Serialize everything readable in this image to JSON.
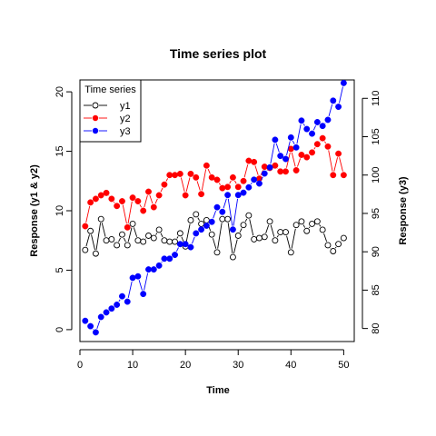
{
  "chart_data": {
    "type": "scatter",
    "title": "Time series plot",
    "xlabel": "Time",
    "ylabel_left": "Response (y1 & y2)",
    "ylabel_right": "Response (y3)",
    "xlim": [
      0,
      52
    ],
    "ylim_left": [
      -1,
      21
    ],
    "ylim_right": [
      78.3,
      112.4
    ],
    "x_ticks": [
      0,
      10,
      20,
      30,
      40,
      50
    ],
    "y_left_ticks": [
      0,
      5,
      10,
      15,
      20
    ],
    "y_right_ticks": [
      80,
      85,
      90,
      95,
      100,
      105,
      110
    ],
    "grid": false,
    "legend": {
      "title": "Time series",
      "position": "top-left"
    },
    "x": [
      1,
      2,
      3,
      4,
      5,
      6,
      7,
      8,
      9,
      10,
      11,
      12,
      13,
      14,
      15,
      16,
      17,
      18,
      19,
      20,
      21,
      22,
      23,
      24,
      25,
      26,
      27,
      28,
      29,
      30,
      31,
      32,
      33,
      34,
      35,
      36,
      37,
      38,
      39,
      40,
      41,
      42,
      43,
      44,
      45,
      46,
      47,
      48,
      49,
      50
    ],
    "series": [
      {
        "name": "y1",
        "axis": "left",
        "marker": "open-circle",
        "line": "solid",
        "color": "#000000",
        "values": [
          6.7,
          8.3,
          6.4,
          9.3,
          7.5,
          7.6,
          7.1,
          8.0,
          7.1,
          8.9,
          7.5,
          7.4,
          7.9,
          7.7,
          8.4,
          7.5,
          7.4,
          7.4,
          8.1,
          7.0,
          9.2,
          9.7,
          8.9,
          9.2,
          8.0,
          6.5,
          9.3,
          9.3,
          6.1,
          7.9,
          8.8,
          9.6,
          7.6,
          7.7,
          7.8,
          9.1,
          7.5,
          8.2,
          8.2,
          6.5,
          8.8,
          9.1,
          8.3,
          8.9,
          9.1,
          8.4,
          7.1,
          6.6,
          7.2,
          7.7
        ]
      },
      {
        "name": "y2",
        "axis": "left",
        "marker": "filled-circle",
        "line": "solid",
        "color": "#ff0000",
        "values": [
          8.7,
          10.7,
          11.0,
          11.3,
          11.5,
          11.0,
          10.4,
          10.8,
          8.6,
          11.1,
          10.8,
          10.0,
          11.6,
          10.3,
          11.3,
          12.2,
          13.0,
          13.0,
          13.1,
          11.3,
          13.1,
          12.8,
          11.4,
          13.8,
          12.8,
          12.6,
          11.9,
          12.0,
          12.8,
          12.0,
          12.5,
          14.2,
          14.1,
          12.7,
          13.7,
          13.6,
          13.8,
          13.3,
          13.3,
          15.2,
          13.4,
          14.7,
          14.5,
          14.9,
          15.6,
          16.1,
          15.4,
          13.0,
          14.8,
          13.0
        ]
      },
      {
        "name": "y3",
        "axis": "right",
        "marker": "filled-circle",
        "line": "solid",
        "color": "#0000ff",
        "values": [
          81.0,
          80.3,
          79.5,
          81.5,
          82.1,
          82.6,
          83.1,
          84.2,
          83.5,
          86.6,
          86.8,
          84.5,
          87.7,
          87.7,
          88.2,
          89.1,
          89.1,
          89.6,
          91.0,
          91.0,
          90.6,
          92.4,
          92.9,
          93.4,
          93.9,
          95.8,
          95.2,
          97.4,
          92.9,
          97.4,
          97.7,
          98.4,
          99.4,
          98.9,
          100.2,
          101.0,
          104.6,
          102.5,
          102.1,
          104.9,
          103.6,
          107.1,
          106.0,
          105.4,
          106.9,
          106.4,
          107.2,
          109.7,
          108.9,
          112.0
        ]
      }
    ]
  }
}
